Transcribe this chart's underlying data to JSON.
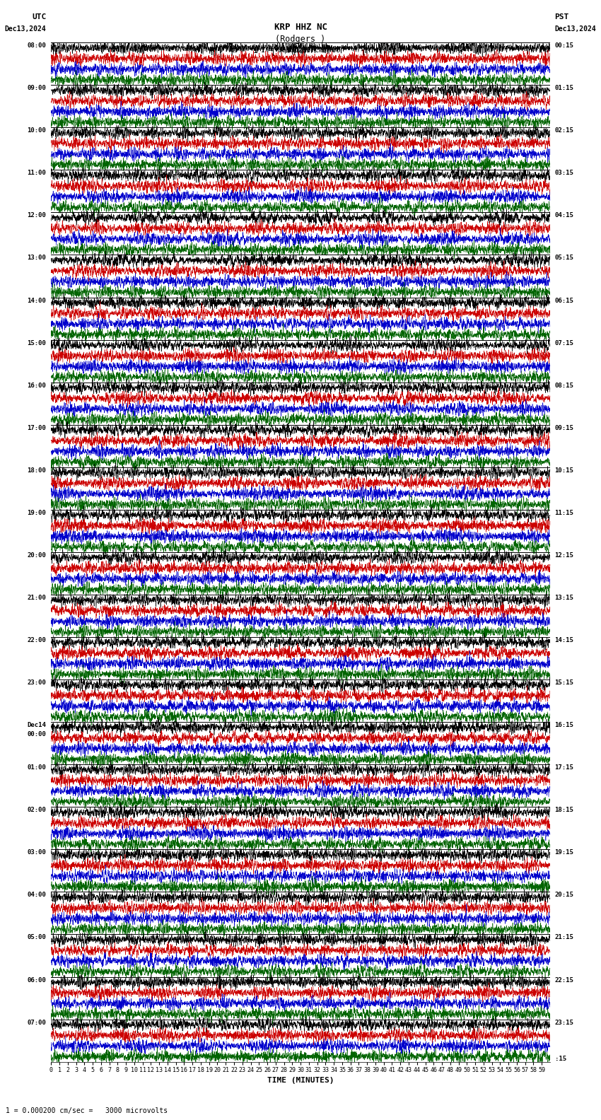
{
  "title_line1": "KRP HHZ NC",
  "title_line2": "(Rodgers )",
  "scale_label": "I = 0.000200 cm/sec",
  "utc_label": "UTC",
  "utc_date": "Dec13,2024",
  "pst_label": "PST",
  "pst_date": "Dec13,2024",
  "bottom_label": "TIME (MINUTES)",
  "bottom_note": "1 = 0.000200 cm/sec =   3000 microvolts",
  "bg_color": "#ffffff",
  "trace_colors": [
    "#000000",
    "#cc0000",
    "#0000cc",
    "#006400"
  ],
  "utc_times": [
    "08:00",
    "09:00",
    "10:00",
    "11:00",
    "12:00",
    "13:00",
    "14:00",
    "15:00",
    "16:00",
    "17:00",
    "18:00",
    "19:00",
    "20:00",
    "21:00",
    "22:00",
    "23:00",
    "Dec14",
    "01:00",
    "02:00",
    "03:00",
    "04:00",
    "05:00",
    "06:00",
    "07:00"
  ],
  "utc_times2": [
    "",
    "",
    "",
    "",
    "",
    "",
    "",
    "",
    "",
    "",
    "",
    "",
    "",
    "",
    "",
    "",
    "00:00",
    "",
    "",
    "",
    "",
    "",
    "",
    ""
  ],
  "pst_times": [
    "00:15",
    "01:15",
    "02:15",
    "03:15",
    "04:15",
    "05:15",
    "06:15",
    "07:15",
    "08:15",
    "09:15",
    "10:15",
    "11:15",
    "12:15",
    "13:15",
    "14:15",
    "15:15",
    "16:15",
    "17:15",
    "18:15",
    "19:15",
    "20:15",
    "21:15",
    "22:15",
    "23:15"
  ],
  "n_rows": 24,
  "n_sub_rows": 4,
  "fig_width": 8.5,
  "fig_height": 15.84,
  "dpi": 100,
  "n_samples": 3600,
  "x_tick_interval": 60,
  "x_tick_labels": [
    "0",
    "1",
    "2",
    "3",
    "4",
    "5",
    "6",
    "7",
    "8",
    "9",
    "10",
    "11",
    "12",
    "13",
    "14",
    "15",
    "16",
    "17",
    "18",
    "19",
    "20",
    "21",
    "22",
    "23",
    "24",
    "25",
    "26",
    "27",
    "28",
    "29",
    "30",
    "31",
    "32",
    "33",
    "34",
    "35",
    "36",
    "37",
    "38",
    "39",
    "40",
    "41",
    "42",
    "43",
    "44",
    "45",
    "46",
    "47",
    "48",
    "49",
    "50",
    "51",
    "52",
    "53",
    "54",
    "55",
    "56",
    "57",
    "58",
    "59"
  ]
}
